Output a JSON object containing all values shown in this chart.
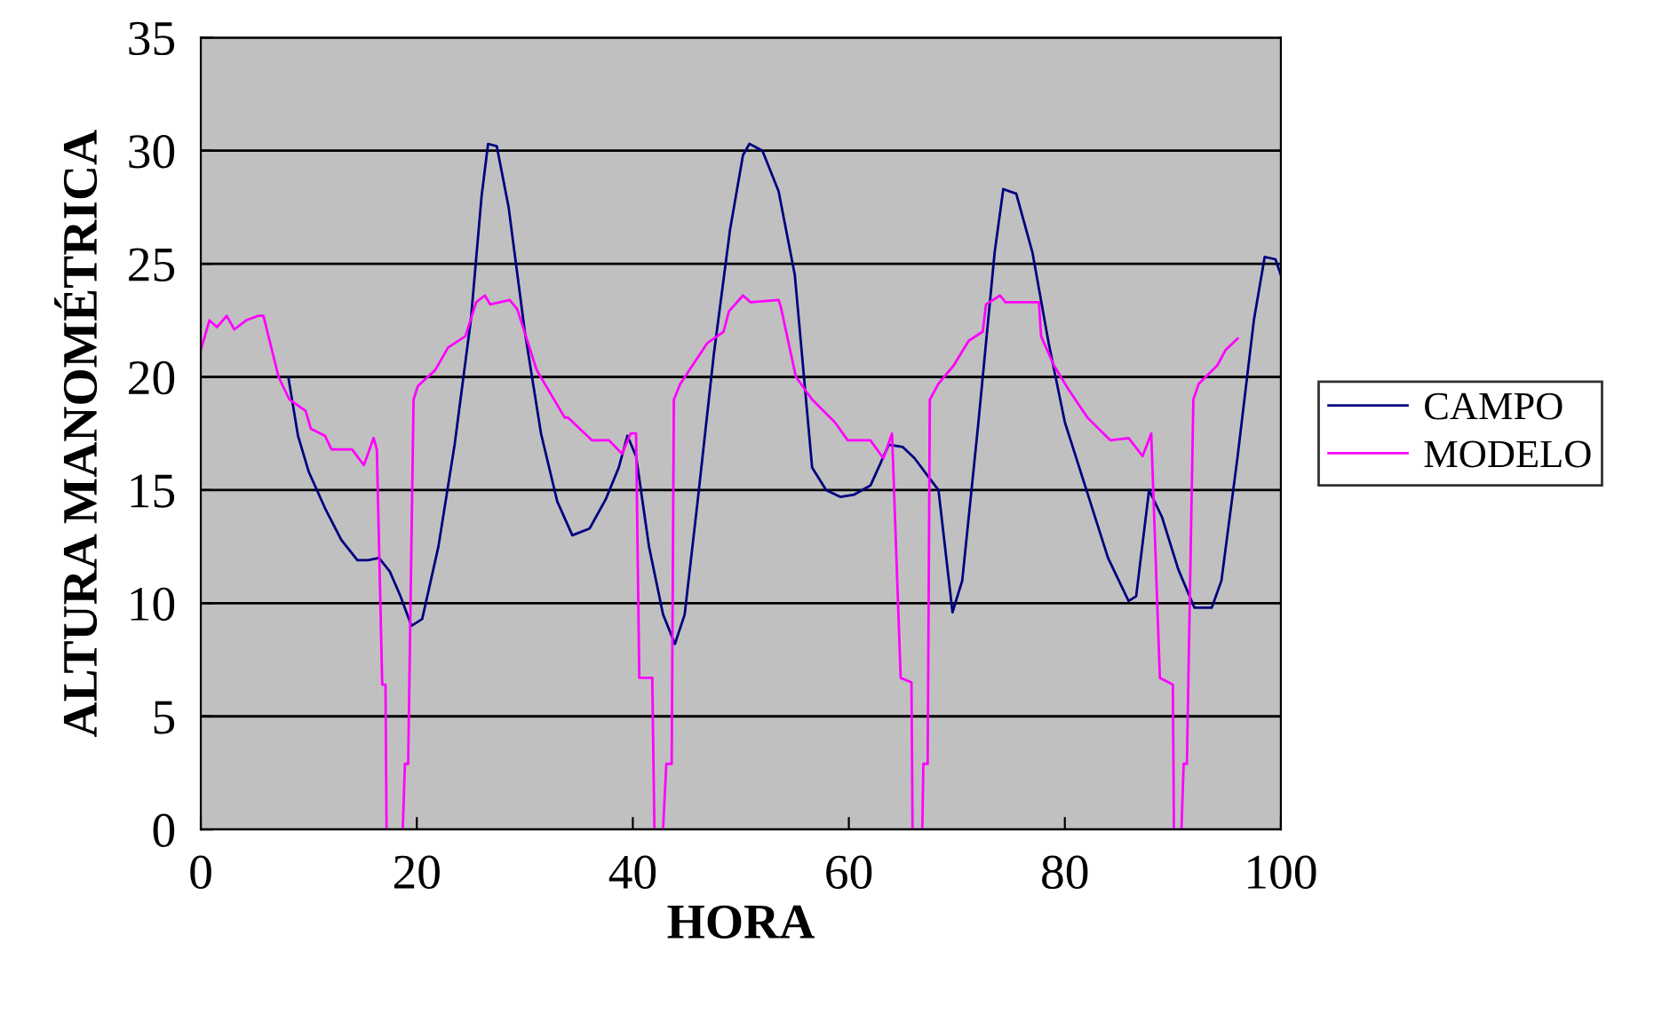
{
  "chart_data": {
    "type": "line",
    "xlabel": "HORA",
    "ylabel": "ALTURA MANOMÉTRICA",
    "xlim": [
      0,
      100
    ],
    "ylim": [
      0,
      35
    ],
    "xticks": [
      0,
      20,
      40,
      60,
      80,
      100
    ],
    "yticks": [
      0,
      5,
      10,
      15,
      20,
      25,
      30,
      35
    ],
    "grid": "y",
    "legend": "right",
    "marker": "none",
    "line_style": "solid",
    "series": [
      {
        "name": "CAMPO",
        "color": "#000080",
        "x": [
          8.1,
          9.0,
          10,
          11.5,
          13,
          14.5,
          15.5,
          16.5,
          17.5,
          18.5,
          19.5,
          20.5,
          22,
          23.5,
          25,
          26,
          26.6,
          27.4,
          28.5,
          30,
          31.5,
          33,
          34.4,
          36,
          37.5,
          38.7,
          39.5,
          40.3,
          41.5,
          42.8,
          43.9,
          44.8,
          46,
          47.5,
          49,
          50.2,
          50.8,
          52,
          53.5,
          55,
          56.6,
          57.9,
          59.2,
          60.5,
          62,
          63.7,
          65,
          66.1,
          67.5,
          68.3,
          69.6,
          70.5,
          72,
          73.5,
          74.3,
          75.5,
          77,
          78.5,
          80,
          82,
          84,
          85.9,
          86.6,
          87.8,
          89,
          90.5,
          92,
          93.6,
          94.5,
          96,
          97.5,
          98.5,
          99.5,
          100
        ],
        "values": [
          20,
          17.4,
          15.8,
          14.2,
          12.8,
          11.9,
          11.9,
          12.0,
          11.4,
          10.3,
          9.0,
          9.3,
          12.5,
          17.0,
          22.5,
          28,
          30.3,
          30.2,
          27.5,
          22,
          17.5,
          14.5,
          13.0,
          13.3,
          14.6,
          16.0,
          17.4,
          16.5,
          12.5,
          9.5,
          8.2,
          9.5,
          14.5,
          21,
          26.5,
          29.8,
          30.3,
          30.0,
          28.2,
          24.5,
          16.0,
          15.0,
          14.7,
          14.8,
          15.2,
          17.0,
          16.9,
          16.4,
          15.5,
          15.0,
          9.6,
          11.0,
          18.0,
          25.5,
          28.3,
          28.1,
          25.5,
          21.5,
          18,
          15.0,
          12.0,
          10.1,
          10.3,
          15.0,
          13.8,
          11.5,
          9.8,
          9.8,
          11.0,
          16.5,
          22.5,
          25.3,
          25.2,
          24.5
        ]
      },
      {
        "name": "MODELO",
        "color": "#ff00ff",
        "x": [
          0,
          0.8,
          1.5,
          2.4,
          3.1,
          4.2,
          5.3,
          5.8,
          7.2,
          8.2,
          9.7,
          10.2,
          11.5,
          12.1,
          14,
          15.1,
          16,
          16.3,
          16.8,
          17.1,
          17.2,
          17.3,
          18.7,
          18.9,
          19.2,
          19.7,
          20.1,
          21.7,
          22.9,
          24.5,
          25.5,
          26.3,
          26.8,
          28.6,
          29.3,
          31.1,
          33.7,
          34,
          36.2,
          37.8,
          39,
          39.8,
          40.3,
          40.6,
          41.8,
          42.0,
          42.1,
          42.8,
          43.1,
          43.6,
          43.8,
          44.4,
          46.9,
          48.4,
          48.9,
          50.2,
          50.9,
          53.5,
          53.7,
          55.1,
          56.6,
          58.7,
          59.9,
          62,
          63.2,
          64,
          64.8,
          65.8,
          65.9,
          66.0,
          66.8,
          66.9,
          67.3,
          67.5,
          68.3,
          69.7,
          71.1,
          72.4,
          72.7,
          74,
          74.5,
          77.6,
          77.8,
          79,
          80.4,
          82.1,
          84.2,
          85.9,
          87.2,
          88,
          88.8,
          90,
          90.1,
          90.2,
          90.8,
          91.0,
          91.3,
          91.9,
          92.4,
          94.1,
          94.9,
          96
        ],
        "values": [
          21.2,
          22.5,
          22.2,
          22.7,
          22.1,
          22.5,
          22.7,
          22.7,
          20,
          19,
          18.5,
          17.7,
          17.4,
          16.8,
          16.8,
          16.1,
          17.3,
          16.8,
          6.4,
          6.4,
          0,
          null,
          0,
          2.9,
          2.9,
          19,
          19.6,
          20.3,
          21.3,
          21.8,
          23.3,
          23.6,
          23.2,
          23.4,
          23,
          20.3,
          18.2,
          18.2,
          17.2,
          17.2,
          16.6,
          17.5,
          17.5,
          6.7,
          6.7,
          0,
          null,
          0,
          2.9,
          2.9,
          19,
          19.7,
          21.5,
          22,
          22.9,
          23.6,
          23.3,
          23.4,
          23.1,
          20,
          19,
          18,
          17.2,
          17.2,
          16.4,
          17.5,
          6.7,
          6.5,
          0,
          null,
          0,
          2.9,
          2.9,
          19,
          19.7,
          20.5,
          21.6,
          22,
          23.2,
          23.6,
          23.3,
          23.3,
          21.8,
          20.5,
          19.4,
          18.2,
          17.2,
          17.3,
          16.5,
          17.5,
          6.7,
          6.4,
          0,
          null,
          0,
          2.9,
          2.9,
          19,
          19.7,
          20.5,
          21.2,
          21.7
        ]
      }
    ]
  }
}
